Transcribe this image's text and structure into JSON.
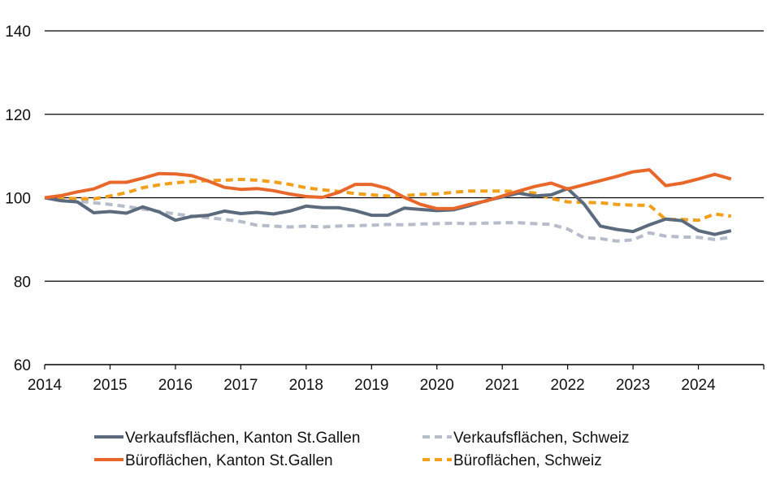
{
  "chart_data": {
    "type": "line",
    "title": "",
    "xlabel": "",
    "ylabel": "",
    "xlim": [
      2014,
      2025
    ],
    "ylim": [
      60,
      140
    ],
    "x_ticks": [
      2014,
      2015,
      2016,
      2017,
      2018,
      2019,
      2020,
      2021,
      2022,
      2023,
      2024
    ],
    "y_ticks": [
      60,
      80,
      100,
      120,
      140
    ],
    "grid": "horizontal",
    "legend_position": "bottom",
    "x": [
      2014.0,
      2014.25,
      2014.5,
      2014.75,
      2015.0,
      2015.25,
      2015.5,
      2015.75,
      2016.0,
      2016.25,
      2016.5,
      2016.75,
      2017.0,
      2017.25,
      2017.5,
      2017.75,
      2018.0,
      2018.25,
      2018.5,
      2018.75,
      2019.0,
      2019.25,
      2019.5,
      2019.75,
      2020.0,
      2020.25,
      2020.5,
      2020.75,
      2021.0,
      2021.25,
      2021.5,
      2021.75,
      2022.0,
      2022.25,
      2022.5,
      2022.75,
      2023.0,
      2023.25,
      2023.5,
      2023.75,
      2024.0,
      2024.25,
      2024.5
    ],
    "series": [
      {
        "name": "Verkaufsflächen, Kanton St.Gallen",
        "color": "#5b6b7d",
        "style": "solid",
        "values": [
          100,
          99.3,
          99.0,
          96.4,
          96.7,
          96.3,
          97.8,
          96.6,
          94.6,
          95.5,
          95.8,
          96.8,
          96.2,
          96.5,
          96.1,
          96.8,
          98.0,
          97.6,
          97.6,
          96.9,
          95.8,
          95.8,
          97.5,
          97.2,
          96.9,
          97.1,
          98.1,
          99.3,
          100.2,
          101.1,
          100.4,
          100.7,
          102.2,
          98.5,
          93.2,
          92.4,
          91.9,
          93.5,
          94.9,
          94.5,
          92.1,
          91.2,
          92.1
        ]
      },
      {
        "name": "Verkaufsflächen, Schweiz",
        "color": "#b7bccb",
        "style": "dashed",
        "values": [
          100,
          99.6,
          99.2,
          98.8,
          98.4,
          97.9,
          97.3,
          96.7,
          96.1,
          95.6,
          95.2,
          94.8,
          94.3,
          93.4,
          93.2,
          93.0,
          93.2,
          93.0,
          93.2,
          93.3,
          93.4,
          93.6,
          93.5,
          93.7,
          93.8,
          93.9,
          93.8,
          93.9,
          94.0,
          94.0,
          93.8,
          93.6,
          92.5,
          90.4,
          90.2,
          89.6,
          89.9,
          91.6,
          90.8,
          90.6,
          90.5,
          90.0,
          90.5
        ]
      },
      {
        "name": "Büroflächen, Kanton St.Gallen",
        "color": "#e8672a",
        "style": "solid",
        "values": [
          100,
          100.5,
          101.4,
          102.1,
          103.7,
          103.7,
          104.7,
          105.8,
          105.7,
          105.3,
          104.0,
          102.5,
          102.0,
          102.2,
          101.7,
          100.9,
          100.3,
          100.1,
          101.3,
          103.2,
          103.2,
          102.2,
          100.1,
          98.4,
          97.4,
          97.4,
          98.4,
          99.2,
          100.4,
          101.6,
          102.7,
          103.5,
          102.1,
          103.1,
          104.1,
          105.1,
          106.2,
          106.7,
          102.9,
          103.5,
          104.5,
          105.6,
          104.5
        ]
      },
      {
        "name": "Büroflächen, Schweiz",
        "color": "#f29f1c",
        "style": "dashed",
        "values": [
          100,
          99.9,
          99.8,
          99.7,
          100.4,
          101.2,
          102.4,
          103.1,
          103.6,
          103.9,
          104.1,
          104.2,
          104.4,
          104.2,
          103.8,
          103.2,
          102.4,
          101.9,
          101.5,
          101.0,
          100.7,
          100.4,
          100.5,
          100.8,
          100.9,
          101.3,
          101.6,
          101.6,
          101.6,
          101.5,
          101.1,
          99.8,
          99.0,
          98.9,
          98.8,
          98.4,
          98.2,
          98.2,
          94.8,
          94.8,
          94.6,
          96.1,
          95.6
        ]
      }
    ]
  }
}
